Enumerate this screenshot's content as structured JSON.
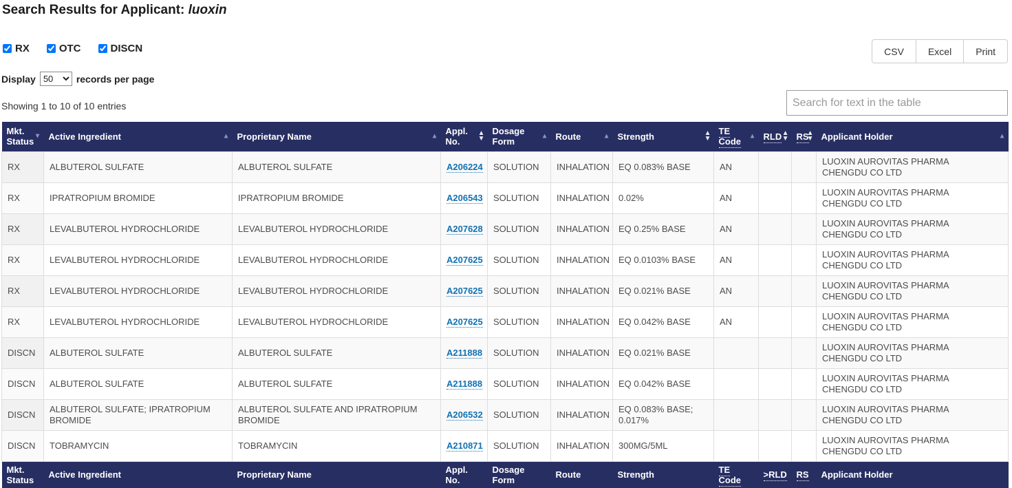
{
  "header": {
    "title_prefix": "Search Results for Applicant:",
    "title_query": "luoxin"
  },
  "filters": [
    {
      "label": "RX",
      "checked": true
    },
    {
      "label": "OTC",
      "checked": true
    },
    {
      "label": "DISCN",
      "checked": true
    }
  ],
  "export_buttons": [
    "CSV",
    "Excel",
    "Print"
  ],
  "display": {
    "label_before": "Display",
    "selected_option": "50",
    "label_after": "records per page"
  },
  "summary_text": "Showing 1 to 10 of 10 entries",
  "search": {
    "placeholder": "Search for text in the table"
  },
  "table": {
    "columns": [
      {
        "label": "Mkt. Status",
        "sort": "desc",
        "abbr": false
      },
      {
        "label": "Active Ingredient",
        "sort": "asc",
        "abbr": false
      },
      {
        "label": "Proprietary Name",
        "sort": "asc",
        "abbr": false
      },
      {
        "label": "Appl. No.",
        "sort": "both",
        "abbr": false
      },
      {
        "label": "Dosage Form",
        "sort": "asc",
        "abbr": false
      },
      {
        "label": "Route",
        "sort": "asc",
        "abbr": false
      },
      {
        "label": "Strength",
        "sort": "both",
        "abbr": false
      },
      {
        "label": "TE Code",
        "sort": "asc",
        "abbr": true
      },
      {
        "label": "RLD",
        "sort": "both",
        "abbr": true
      },
      {
        "label": "RS",
        "sort": "both",
        "abbr": true
      },
      {
        "label": "Applicant Holder",
        "sort": "asc",
        "abbr": false
      }
    ],
    "footer_columns": [
      {
        "label": "Mkt. Status",
        "abbr": false
      },
      {
        "label": "Active Ingredient",
        "abbr": false
      },
      {
        "label": "Proprietary Name",
        "abbr": false
      },
      {
        "label": "Appl. No.",
        "abbr": false
      },
      {
        "label": "Dosage Form",
        "abbr": false
      },
      {
        "label": "Route",
        "abbr": false
      },
      {
        "label": "Strength",
        "abbr": false
      },
      {
        "label": "TE Code",
        "abbr": true
      },
      {
        "label": ">RLD",
        "abbr": true
      },
      {
        "label": "RS",
        "abbr": true
      },
      {
        "label": "Applicant Holder",
        "abbr": false
      }
    ],
    "rows": [
      {
        "mkt_status": "RX",
        "active_ingredient": "ALBUTEROL SULFATE",
        "proprietary_name": "ALBUTEROL SULFATE",
        "appl_no": "A206224",
        "dosage_form": "SOLUTION",
        "route": "INHALATION",
        "strength": "EQ 0.083% BASE",
        "te_code": "AN",
        "rld": "",
        "rs": "",
        "applicant_holder": "LUOXIN AUROVITAS PHARMA CHENGDU CO LTD"
      },
      {
        "mkt_status": "RX",
        "active_ingredient": "IPRATROPIUM BROMIDE",
        "proprietary_name": "IPRATROPIUM BROMIDE",
        "appl_no": "A206543",
        "dosage_form": "SOLUTION",
        "route": "INHALATION",
        "strength": "0.02%",
        "te_code": "AN",
        "rld": "",
        "rs": "",
        "applicant_holder": "LUOXIN AUROVITAS PHARMA CHENGDU CO LTD"
      },
      {
        "mkt_status": "RX",
        "active_ingredient": "LEVALBUTEROL HYDROCHLORIDE",
        "proprietary_name": "LEVALBUTEROL HYDROCHLORIDE",
        "appl_no": "A207628",
        "dosage_form": "SOLUTION",
        "route": "INHALATION",
        "strength": "EQ 0.25% BASE",
        "te_code": "AN",
        "rld": "",
        "rs": "",
        "applicant_holder": "LUOXIN AUROVITAS PHARMA CHENGDU CO LTD"
      },
      {
        "mkt_status": "RX",
        "active_ingredient": "LEVALBUTEROL HYDROCHLORIDE",
        "proprietary_name": "LEVALBUTEROL HYDROCHLORIDE",
        "appl_no": "A207625",
        "dosage_form": "SOLUTION",
        "route": "INHALATION",
        "strength": "EQ 0.0103% BASE",
        "te_code": "AN",
        "rld": "",
        "rs": "",
        "applicant_holder": "LUOXIN AUROVITAS PHARMA CHENGDU CO LTD"
      },
      {
        "mkt_status": "RX",
        "active_ingredient": "LEVALBUTEROL HYDROCHLORIDE",
        "proprietary_name": "LEVALBUTEROL HYDROCHLORIDE",
        "appl_no": "A207625",
        "dosage_form": "SOLUTION",
        "route": "INHALATION",
        "strength": "EQ 0.021% BASE",
        "te_code": "AN",
        "rld": "",
        "rs": "",
        "applicant_holder": "LUOXIN AUROVITAS PHARMA CHENGDU CO LTD"
      },
      {
        "mkt_status": "RX",
        "active_ingredient": "LEVALBUTEROL HYDROCHLORIDE",
        "proprietary_name": "LEVALBUTEROL HYDROCHLORIDE",
        "appl_no": "A207625",
        "dosage_form": "SOLUTION",
        "route": "INHALATION",
        "strength": "EQ 0.042% BASE",
        "te_code": "AN",
        "rld": "",
        "rs": "",
        "applicant_holder": "LUOXIN AUROVITAS PHARMA CHENGDU CO LTD"
      },
      {
        "mkt_status": "DISCN",
        "active_ingredient": "ALBUTEROL SULFATE",
        "proprietary_name": "ALBUTEROL SULFATE",
        "appl_no": "A211888",
        "dosage_form": "SOLUTION",
        "route": "INHALATION",
        "strength": "EQ 0.021% BASE",
        "te_code": "",
        "rld": "",
        "rs": "",
        "applicant_holder": "LUOXIN AUROVITAS PHARMA CHENGDU CO LTD"
      },
      {
        "mkt_status": "DISCN",
        "active_ingredient": "ALBUTEROL SULFATE",
        "proprietary_name": "ALBUTEROL SULFATE",
        "appl_no": "A211888",
        "dosage_form": "SOLUTION",
        "route": "INHALATION",
        "strength": "EQ 0.042% BASE",
        "te_code": "",
        "rld": "",
        "rs": "",
        "applicant_holder": "LUOXIN AUROVITAS PHARMA CHENGDU CO LTD"
      },
      {
        "mkt_status": "DISCN",
        "active_ingredient": "ALBUTEROL SULFATE; IPRATROPIUM BROMIDE",
        "proprietary_name": "ALBUTEROL SULFATE AND IPRATROPIUM BROMIDE",
        "appl_no": "A206532",
        "dosage_form": "SOLUTION",
        "route": "INHALATION",
        "strength": "EQ 0.083% BASE; 0.017%",
        "te_code": "",
        "rld": "",
        "rs": "",
        "applicant_holder": "LUOXIN AUROVITAS PHARMA CHENGDU CO LTD"
      },
      {
        "mkt_status": "DISCN",
        "active_ingredient": "TOBRAMYCIN",
        "proprietary_name": "TOBRAMYCIN",
        "appl_no": "A210871",
        "dosage_form": "SOLUTION",
        "route": "INHALATION",
        "strength": "300MG/5ML",
        "te_code": "",
        "rld": "",
        "rs": "",
        "applicant_holder": "LUOXIN AUROVITAS PHARMA CHENGDU CO LTD"
      }
    ]
  },
  "colors": {
    "header_bg": "#272e62",
    "link": "#1272b2",
    "stripe": "#f9f9f9",
    "border": "#dddddd",
    "sort_arrow_single": "#8b93c9",
    "sort_arrow_both": "#e9ebf7"
  }
}
